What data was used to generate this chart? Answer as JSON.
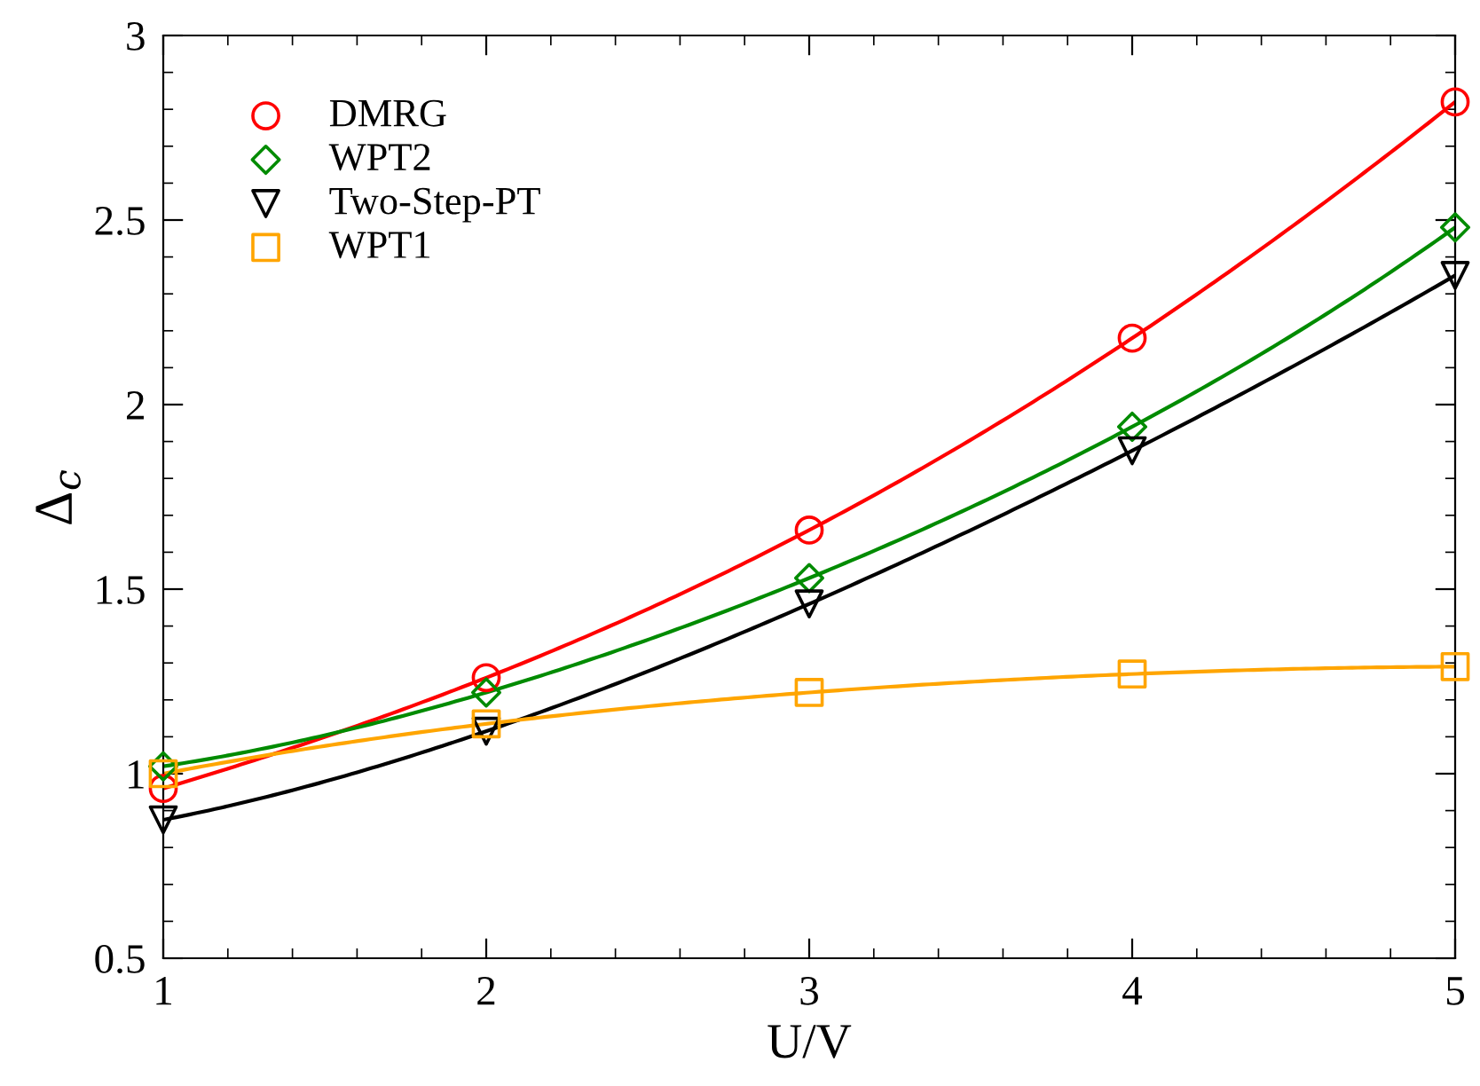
{
  "chart_data": {
    "type": "line",
    "xlabel": "U/V",
    "ylabel": "Δ$_{c}$",
    "x": [
      1,
      2,
      3,
      4,
      5
    ],
    "xlim": [
      1,
      5
    ],
    "ylim": [
      0.5,
      3
    ],
    "xticks": [
      1,
      2,
      3,
      4,
      5
    ],
    "yticks": [
      0.5,
      1,
      1.5,
      2,
      2.5,
      3
    ],
    "legend": "top left",
    "grid": false,
    "series": [
      {
        "name": "DMRG",
        "color": "#ff0000",
        "marker": "circle",
        "values": [
          0.96,
          1.26,
          1.66,
          2.18,
          2.82
        ]
      },
      {
        "name": "WPT2",
        "color": "#008b00",
        "marker": "diamond",
        "values": [
          1.02,
          1.22,
          1.53,
          1.94,
          2.48
        ]
      },
      {
        "name": "Two-Step-PT",
        "color": "#000000",
        "marker": "triangle",
        "values": [
          0.875,
          1.115,
          1.46,
          1.875,
          2.35
        ]
      },
      {
        "name": "WPT1",
        "color": "#ffa500",
        "marker": "square",
        "values": [
          1.0,
          1.135,
          1.22,
          1.27,
          1.29
        ]
      }
    ]
  }
}
